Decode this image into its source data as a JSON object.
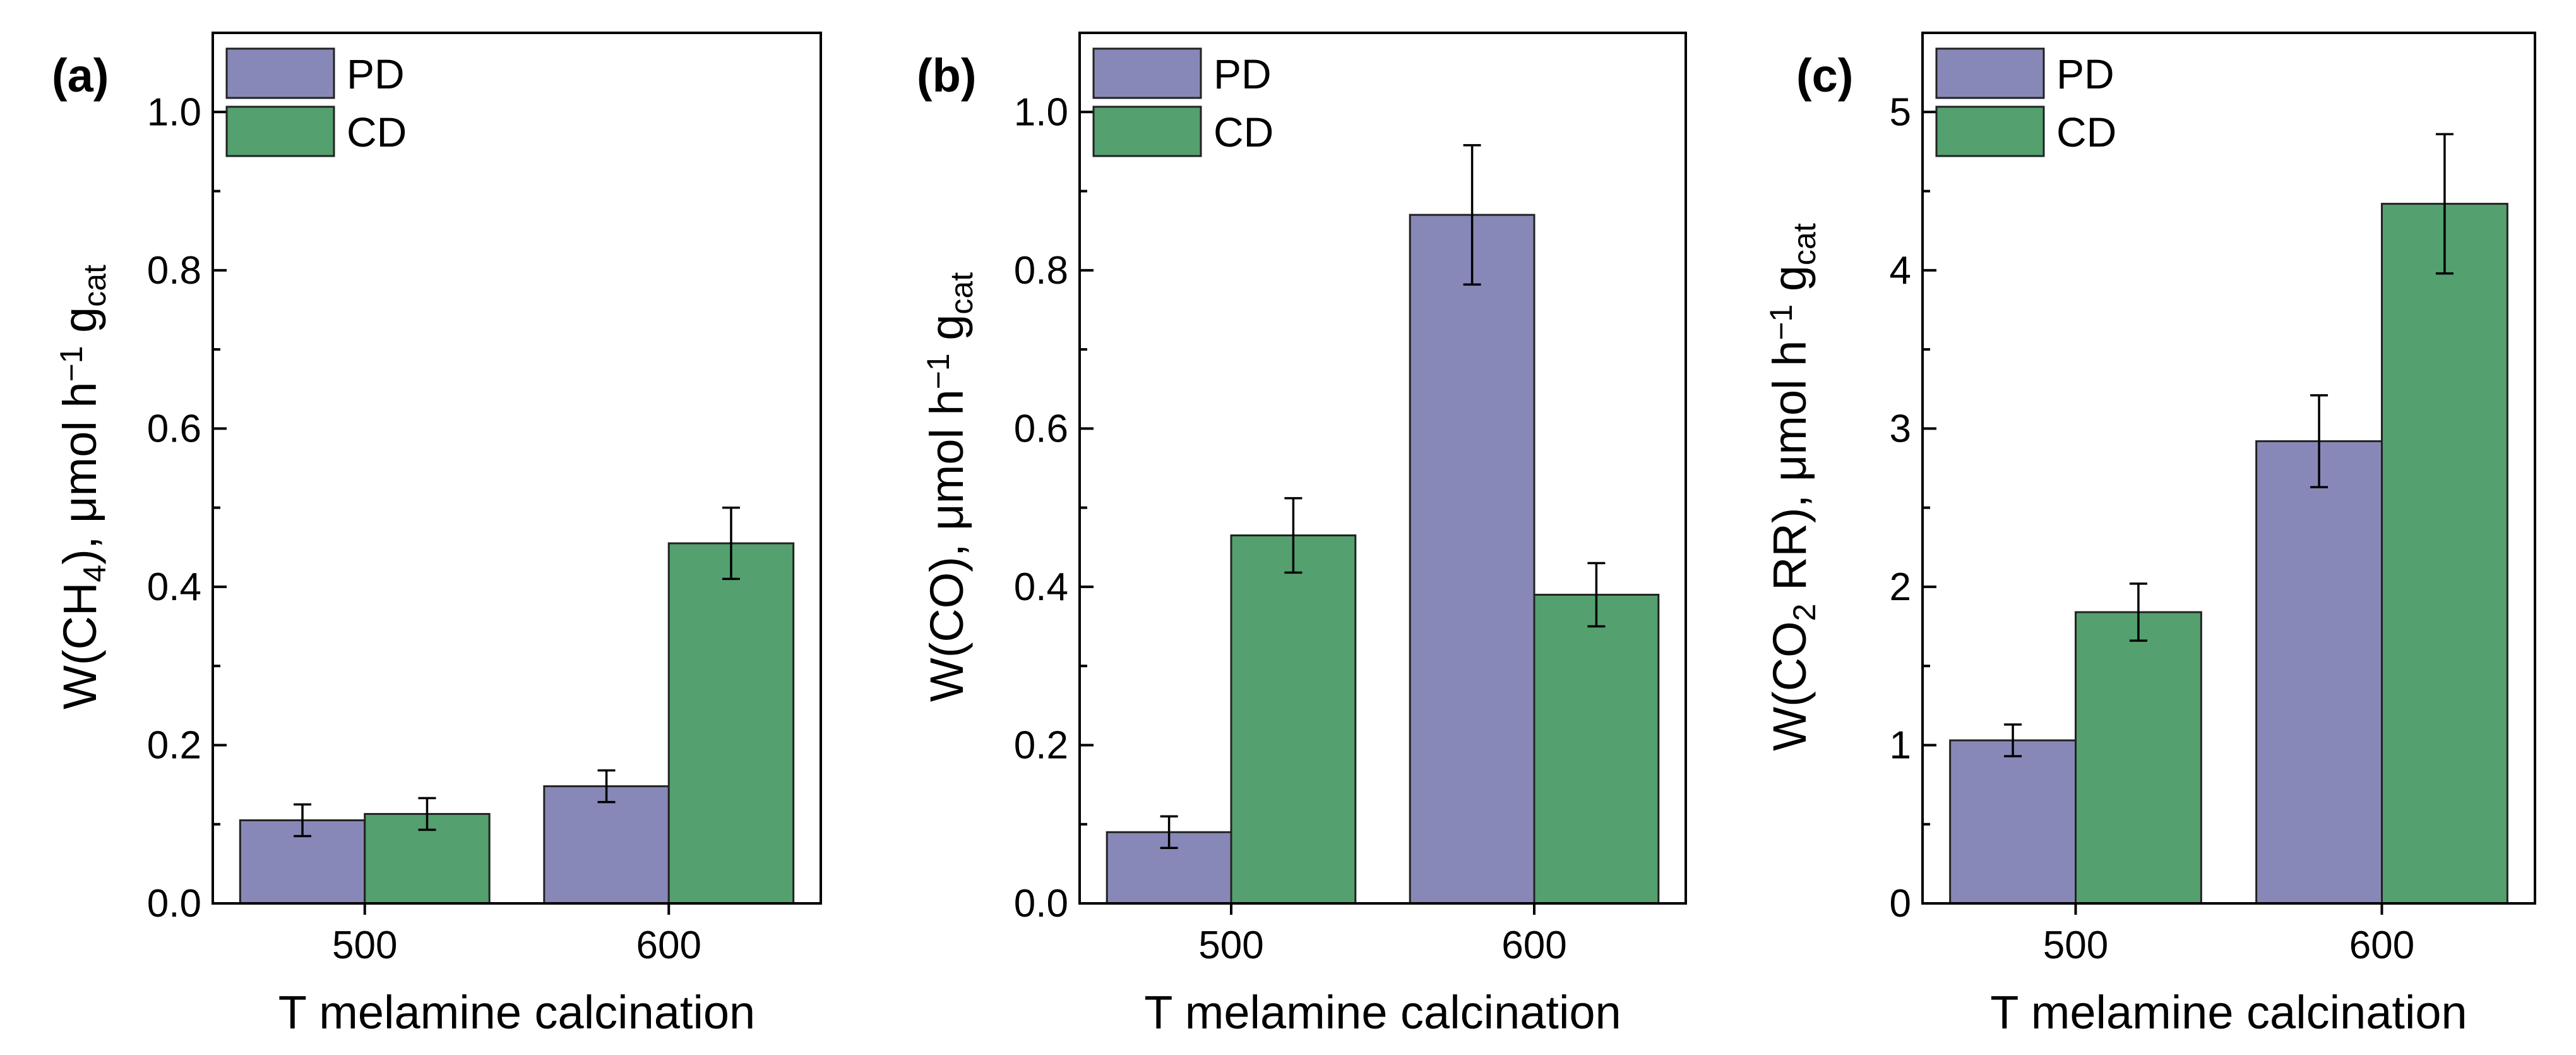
{
  "colors": {
    "PD": "#8888b8",
    "CD": "#54a06e"
  },
  "chart_data": [
    {
      "type": "bar",
      "panel_label": "(a)",
      "categories": [
        "500",
        "600"
      ],
      "series": [
        {
          "name": "PD",
          "values": [
            0.105,
            0.148
          ],
          "errors": [
            0.02,
            0.02
          ]
        },
        {
          "name": "CD",
          "values": [
            0.113,
            0.455
          ],
          "errors": [
            0.02,
            0.045
          ]
        }
      ],
      "xlabel": "T melamine calcination",
      "ylabel_main": "W(CH",
      "ylabel_sub": "4",
      "ylabel_mid": "), μmol h",
      "ylabel_sup": "−1",
      "ylabel_g": " g",
      "ylabel_gsub": "cat",
      "ylim": [
        0,
        1.1
      ],
      "yticks": [
        0.0,
        0.2,
        0.4,
        0.6,
        0.8,
        1.0
      ],
      "ytick_labels": [
        "0.0",
        "0.2",
        "0.4",
        "0.6",
        "0.8",
        "1.0"
      ],
      "legend": [
        "PD",
        "CD"
      ],
      "legend_position": "top-left"
    },
    {
      "type": "bar",
      "panel_label": "(b)",
      "categories": [
        "500",
        "600"
      ],
      "series": [
        {
          "name": "PD",
          "values": [
            0.09,
            0.87
          ],
          "errors": [
            0.02,
            0.088
          ]
        },
        {
          "name": "CD",
          "values": [
            0.465,
            0.39
          ],
          "errors": [
            0.047,
            0.04
          ]
        }
      ],
      "xlabel": "T melamine calcination",
      "ylabel_main": "W(CO), μmol h",
      "ylabel_sub": "",
      "ylabel_mid": "",
      "ylabel_sup": "−1",
      "ylabel_g": " g",
      "ylabel_gsub": "cat",
      "ylim": [
        0,
        1.1
      ],
      "yticks": [
        0.0,
        0.2,
        0.4,
        0.6,
        0.8,
        1.0
      ],
      "ytick_labels": [
        "0.0",
        "0.2",
        "0.4",
        "0.6",
        "0.8",
        "1.0"
      ],
      "legend": [
        "PD",
        "CD"
      ],
      "legend_position": "top-left"
    },
    {
      "type": "bar",
      "panel_label": "(c)",
      "categories": [
        "500",
        "600"
      ],
      "series": [
        {
          "name": "PD",
          "values": [
            1.03,
            2.92
          ],
          "errors": [
            0.1,
            0.29
          ]
        },
        {
          "name": "CD",
          "values": [
            1.84,
            4.42
          ],
          "errors": [
            0.18,
            0.44
          ]
        }
      ],
      "xlabel": "T melamine calcination",
      "ylabel_main": "W(CO",
      "ylabel_sub": "2",
      "ylabel_mid": " RR), μmol h",
      "ylabel_sup": "−1",
      "ylabel_g": " g",
      "ylabel_gsub": "cat",
      "ylim": [
        0,
        5.5
      ],
      "yticks": [
        0,
        1,
        2,
        3,
        4,
        5
      ],
      "ytick_labels": [
        "0",
        "1",
        "2",
        "3",
        "4",
        "5"
      ],
      "legend": [
        "PD",
        "CD"
      ],
      "legend_position": "top-left"
    }
  ]
}
